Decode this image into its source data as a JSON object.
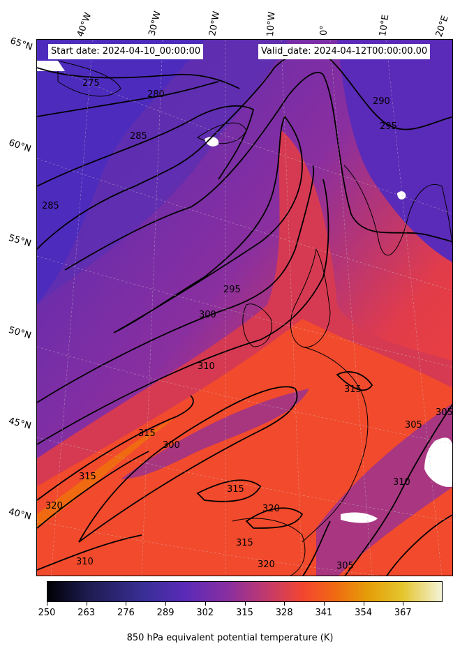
{
  "header": {
    "start_date": "Start date: 2024-04-10_00:00:00",
    "valid_date": "Valid_date: 2024-04-12T00:00:00.00"
  },
  "longitude_labels": [
    "40°W",
    "30°W",
    "20°W",
    "10°W",
    "0°",
    "10°E",
    "20°E"
  ],
  "latitude_labels": [
    "65°N",
    "60°N",
    "55°N",
    "50°N",
    "45°N",
    "40°N"
  ],
  "contour_labels": [
    "275",
    "280",
    "285",
    "290",
    "295",
    "300",
    "305",
    "310",
    "315",
    "320"
  ],
  "colorbar": {
    "ticks": [
      "250",
      "263",
      "276",
      "289",
      "302",
      "315",
      "328",
      "341",
      "354",
      "367"
    ],
    "title": "850 hPa equivalent potential temperature (K)",
    "colors": [
      "#000004",
      "#3a2f99",
      "#5a2ab8",
      "#c43a6a",
      "#f4462f",
      "#f06a12",
      "#e4c52c",
      "#f3f2d8"
    ]
  }
}
